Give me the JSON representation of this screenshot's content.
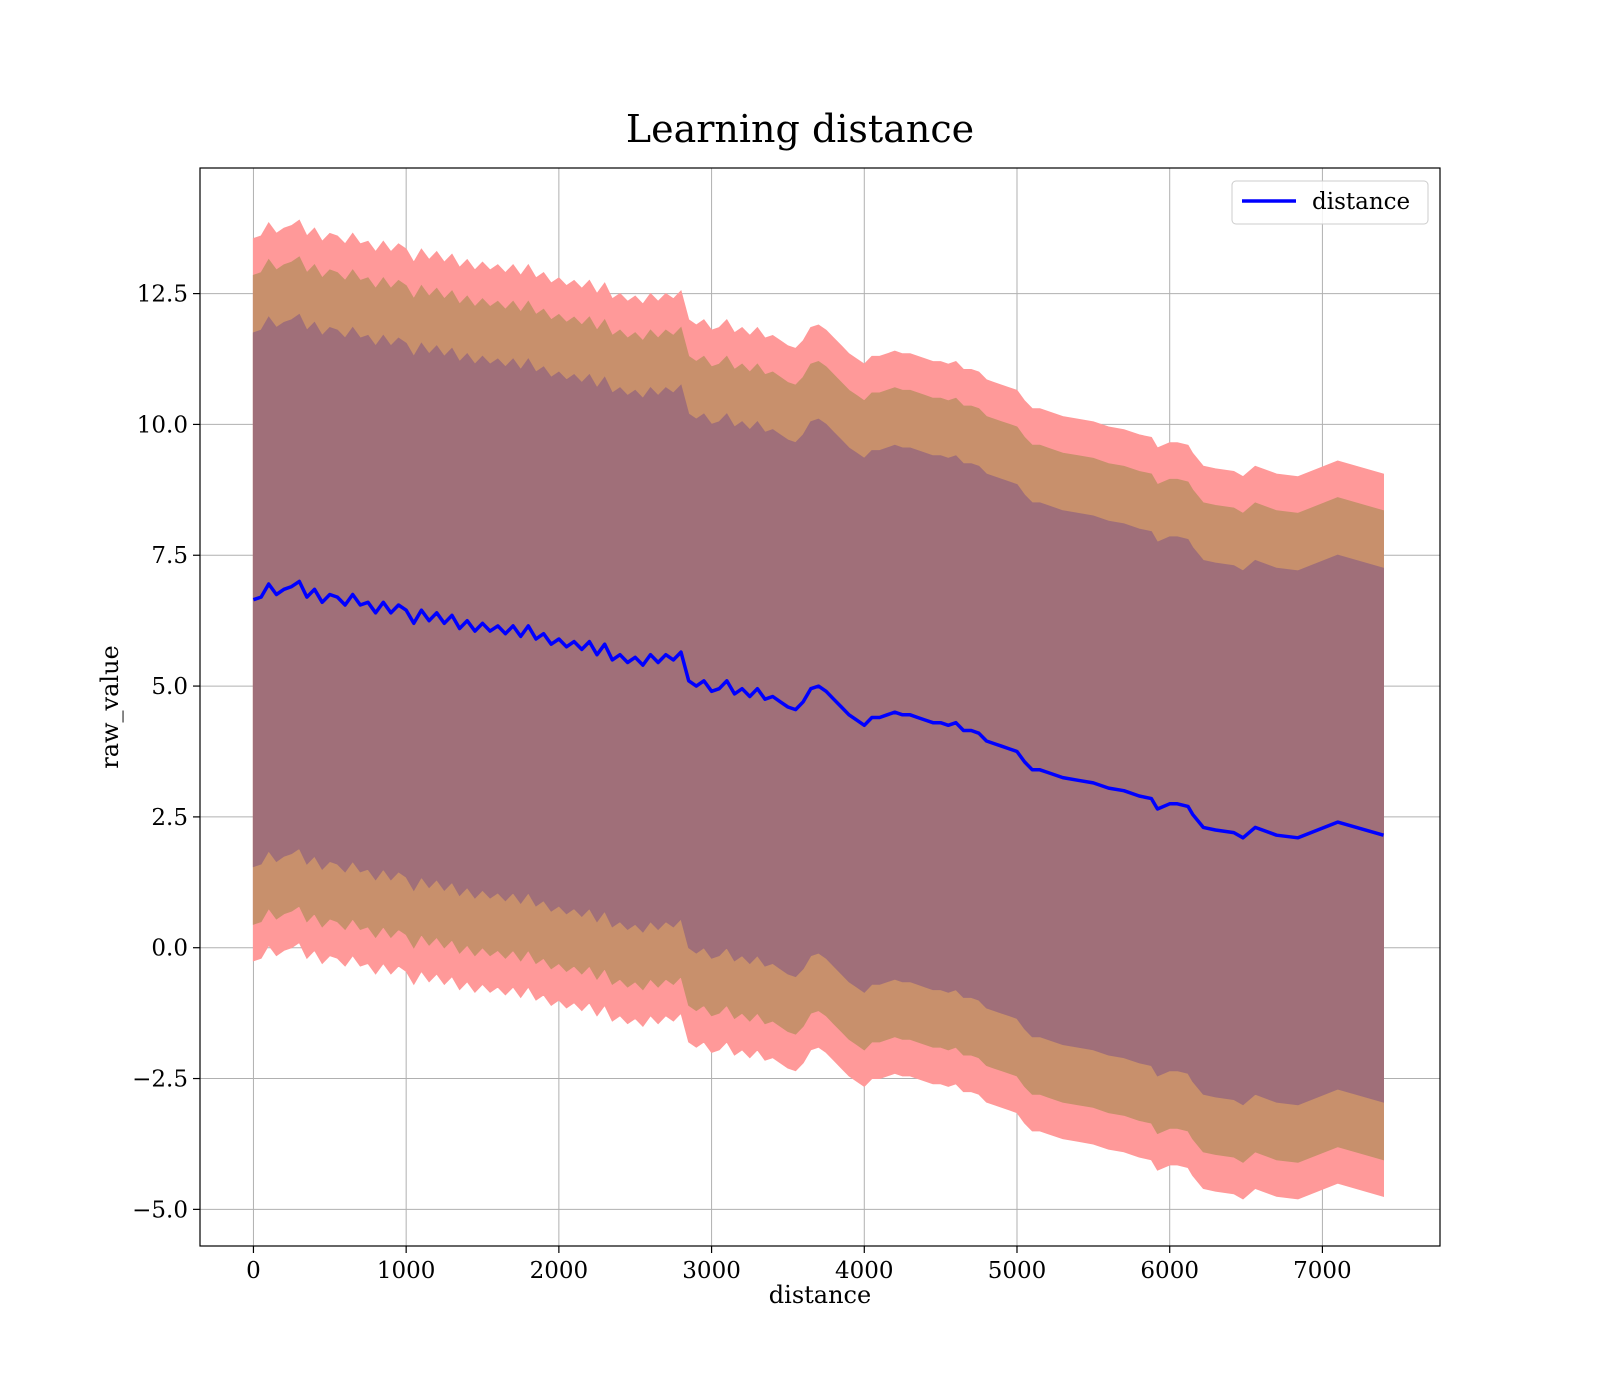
{
  "chart_data": {
    "type": "line",
    "title": "Learning distance",
    "xlabel": "distance",
    "ylabel": "raw_value",
    "xlim": [
      -350,
      7770
    ],
    "ylim": [
      -5.7,
      14.9
    ],
    "xticks": [
      0,
      1000,
      2000,
      3000,
      4000,
      5000,
      6000,
      7000
    ],
    "xtick_labels": [
      "0",
      "1000",
      "2000",
      "3000",
      "4000",
      "5000",
      "6000",
      "7000"
    ],
    "yticks": [
      -5.0,
      -2.5,
      0.0,
      2.5,
      5.0,
      7.5,
      10.0,
      12.5
    ],
    "ytick_labels": [
      "−5.0",
      "−2.5",
      "0.0",
      "2.5",
      "5.0",
      "7.5",
      "10.0",
      "12.5"
    ],
    "grid": true,
    "legend": {
      "position": "top-right",
      "entries": [
        "distance"
      ]
    },
    "colors": {
      "line": "#0000ff",
      "band_outer": "#ff9999",
      "band_mid": "#c8906c",
      "band_inner": "#a06f79"
    },
    "series": [
      {
        "name": "distance",
        "x": [
          0,
          50,
          100,
          150,
          200,
          250,
          300,
          350,
          400,
          450,
          500,
          550,
          600,
          650,
          700,
          750,
          800,
          850,
          900,
          950,
          1000,
          1050,
          1100,
          1150,
          1200,
          1250,
          1300,
          1350,
          1400,
          1450,
          1500,
          1550,
          1600,
          1650,
          1700,
          1750,
          1800,
          1850,
          1900,
          1950,
          2000,
          2050,
          2100,
          2150,
          2200,
          2250,
          2300,
          2350,
          2400,
          2450,
          2500,
          2550,
          2600,
          2650,
          2700,
          2750,
          2800,
          2850,
          2900,
          2950,
          3000,
          3050,
          3100,
          3150,
          3200,
          3250,
          3300,
          3350,
          3400,
          3450,
          3500,
          3550,
          3600,
          3650,
          3700,
          3750,
          3800,
          3850,
          3900,
          3950,
          4000,
          4050,
          4100,
          4150,
          4200,
          4250,
          4300,
          4350,
          4400,
          4450,
          4500,
          4550,
          4600,
          4650,
          4700,
          4750,
          4800,
          4850,
          4900,
          4950,
          5000,
          5050,
          5100,
          5150,
          5200,
          5300,
          5400,
          5500,
          5600,
          5700,
          5800,
          5880,
          5920,
          6000,
          6050,
          6120,
          6150,
          6220,
          6300,
          6420,
          6480,
          6560,
          6700,
          6840,
          7100,
          7400
        ],
        "y": [
          6.65,
          6.7,
          6.95,
          6.75,
          6.85,
          6.9,
          7.0,
          6.7,
          6.85,
          6.6,
          6.75,
          6.7,
          6.55,
          6.75,
          6.55,
          6.6,
          6.4,
          6.6,
          6.4,
          6.55,
          6.45,
          6.2,
          6.45,
          6.25,
          6.4,
          6.2,
          6.35,
          6.1,
          6.25,
          6.05,
          6.2,
          6.05,
          6.15,
          6.0,
          6.15,
          5.95,
          6.15,
          5.9,
          6.0,
          5.8,
          5.9,
          5.75,
          5.85,
          5.7,
          5.85,
          5.6,
          5.8,
          5.5,
          5.6,
          5.45,
          5.55,
          5.4,
          5.6,
          5.45,
          5.6,
          5.5,
          5.65,
          5.1,
          5.0,
          5.1,
          4.9,
          4.95,
          5.1,
          4.85,
          4.95,
          4.8,
          4.95,
          4.75,
          4.8,
          4.7,
          4.6,
          4.55,
          4.7,
          4.95,
          5.0,
          4.9,
          4.75,
          4.6,
          4.45,
          4.35,
          4.25,
          4.4,
          4.4,
          4.45,
          4.5,
          4.45,
          4.45,
          4.4,
          4.35,
          4.3,
          4.3,
          4.25,
          4.3,
          4.15,
          4.15,
          4.1,
          3.95,
          3.9,
          3.85,
          3.8,
          3.75,
          3.55,
          3.4,
          3.4,
          3.35,
          3.25,
          3.2,
          3.15,
          3.05,
          3.0,
          2.9,
          2.85,
          2.65,
          2.75,
          2.75,
          2.7,
          2.55,
          2.3,
          2.25,
          2.2,
          2.1,
          2.3,
          2.15,
          2.1,
          2.4,
          2.15
        ]
      }
    ],
    "bands": [
      {
        "lower_offset": 6.9,
        "upper_offset": 6.9
      },
      {
        "lower_offset": 6.2,
        "upper_offset": 6.2
      },
      {
        "lower_offset": 5.1,
        "upper_offset": 5.1
      }
    ]
  }
}
